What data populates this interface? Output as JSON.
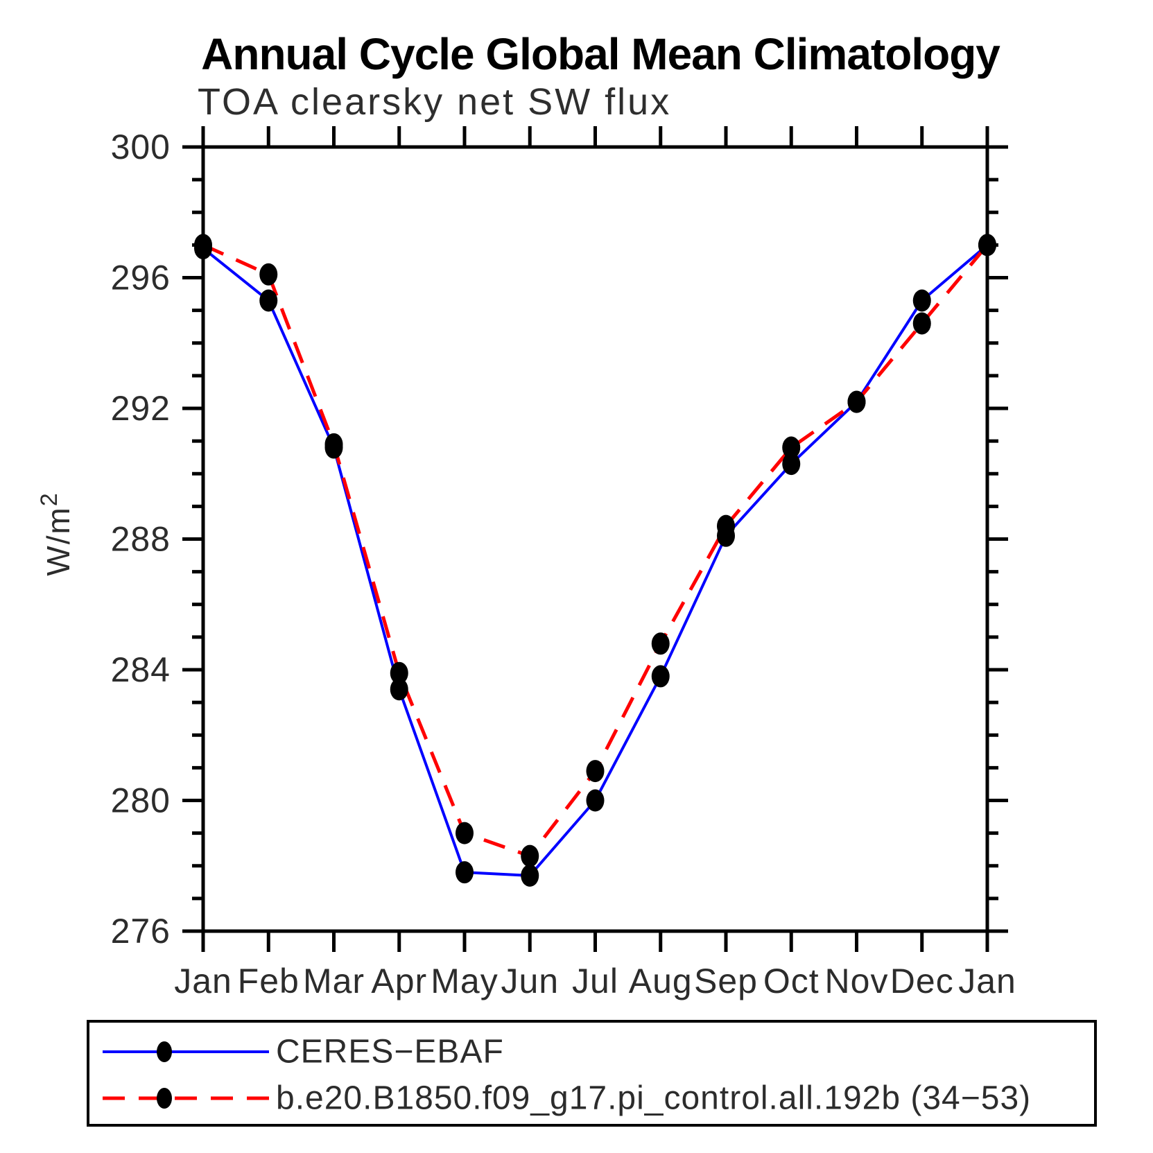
{
  "chart_data": {
    "type": "line",
    "title": "Annual Cycle Global Mean Climatology",
    "subtitle": "TOA clearsky net SW flux",
    "ylabel": "W/m²",
    "ylabel_base": "W/m",
    "ylabel_sup": "2",
    "categories": [
      "Jan",
      "Feb",
      "Mar",
      "Apr",
      "May",
      "Jun",
      "Jul",
      "Aug",
      "Sep",
      "Oct",
      "Nov",
      "Dec",
      "Jan"
    ],
    "series": [
      {
        "name": "CERES−EBAF",
        "color": "#0000ff",
        "line": "solid",
        "values": [
          296.9,
          295.3,
          290.8,
          283.4,
          277.8,
          277.7,
          280.0,
          283.8,
          288.1,
          290.3,
          292.2,
          295.3,
          297.0
        ]
      },
      {
        "name": "b.e20.B1850.f09_g17.pi_control.all.192b (34−53)",
        "color": "#ff0000",
        "line": "dashed",
        "values": [
          297.0,
          296.1,
          290.9,
          283.9,
          279.0,
          278.3,
          280.9,
          284.8,
          288.4,
          290.8,
          292.2,
          294.6,
          297.0
        ]
      }
    ],
    "marker_color": "#000000",
    "axis_color": "#000000",
    "ylim": [
      276,
      300
    ],
    "yticks": [
      276,
      280,
      284,
      288,
      292,
      296,
      300
    ],
    "ytick_minor_step": 1,
    "grid": false,
    "legend_position": "bottom"
  }
}
